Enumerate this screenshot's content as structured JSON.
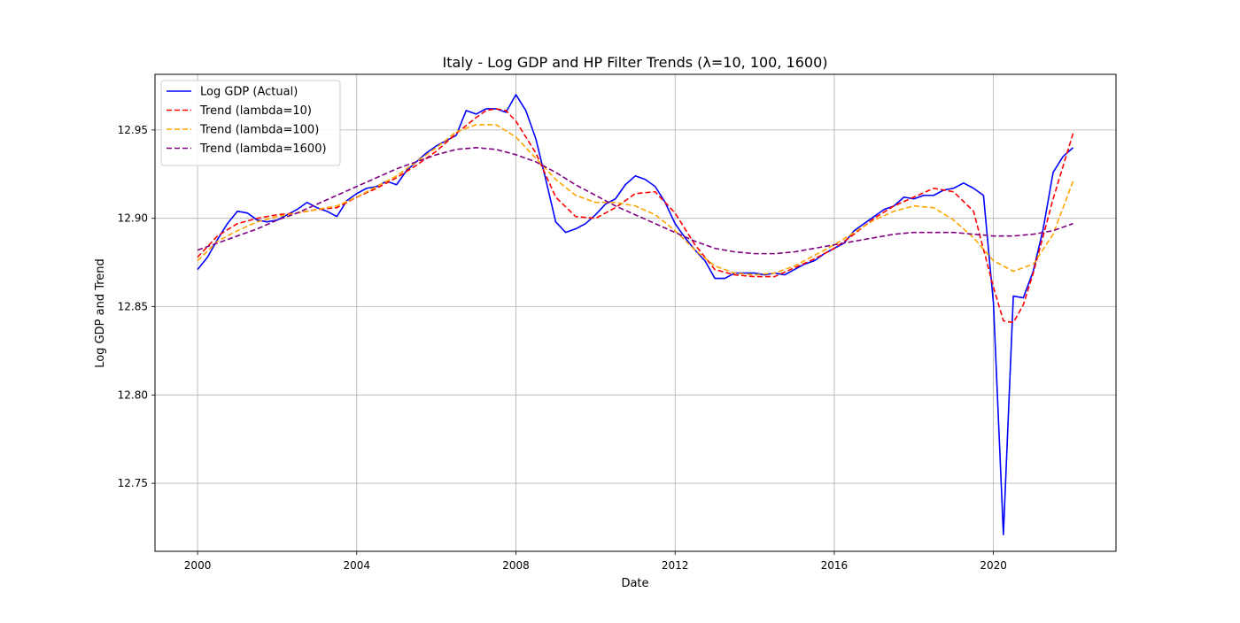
{
  "chart_data": {
    "type": "line",
    "title": "Italy - Log GDP and HP Filter Trends (λ=10, 100, 1600)",
    "xlabel": "Date",
    "ylabel": "Log GDP and Trend",
    "xlim": [
      1998.93,
      2023.08
    ],
    "ylim": [
      12.7115,
      12.9815
    ],
    "xticks": [
      2000,
      2004,
      2008,
      2012,
      2016,
      2020
    ],
    "xtick_labels": [
      "2000",
      "2004",
      "2008",
      "2012",
      "2016",
      "2020"
    ],
    "yticks": [
      12.75,
      12.8,
      12.85,
      12.9,
      12.95
    ],
    "ytick_labels": [
      "12.75",
      "12.80",
      "12.85",
      "12.90",
      "12.95"
    ],
    "grid": true,
    "legend_position": "top-left",
    "series": [
      {
        "name": "Log GDP (Actual)",
        "color": "#0000ff",
        "dash": "solid",
        "x": [
          2000.0,
          2000.25,
          2000.5,
          2000.75,
          2001.0,
          2001.25,
          2001.5,
          2001.75,
          2002.0,
          2002.25,
          2002.5,
          2002.75,
          2003.0,
          2003.25,
          2003.5,
          2003.75,
          2004.0,
          2004.25,
          2004.5,
          2004.75,
          2005.0,
          2005.25,
          2005.5,
          2005.75,
          2006.0,
          2006.25,
          2006.5,
          2006.75,
          2007.0,
          2007.25,
          2007.5,
          2007.75,
          2008.0,
          2008.25,
          2008.5,
          2008.75,
          2009.0,
          2009.25,
          2009.5,
          2009.75,
          2010.0,
          2010.25,
          2010.5,
          2010.75,
          2011.0,
          2011.25,
          2011.5,
          2011.75,
          2012.0,
          2012.25,
          2012.5,
          2012.75,
          2013.0,
          2013.25,
          2013.5,
          2013.75,
          2014.0,
          2014.25,
          2014.5,
          2014.75,
          2015.0,
          2015.25,
          2015.5,
          2015.75,
          2016.0,
          2016.25,
          2016.5,
          2016.75,
          2017.0,
          2017.25,
          2017.5,
          2017.75,
          2018.0,
          2018.25,
          2018.5,
          2018.75,
          2019.0,
          2019.25,
          2019.5,
          2019.75,
          2020.0,
          2020.25,
          2020.5,
          2020.75,
          2021.0,
          2021.25,
          2021.5,
          2021.75,
          2022.0
        ],
        "values": [
          12.871,
          12.878,
          12.888,
          12.897,
          12.904,
          12.903,
          12.899,
          12.898,
          12.899,
          12.902,
          12.905,
          12.909,
          12.906,
          12.904,
          12.901,
          12.91,
          12.914,
          12.917,
          12.918,
          12.921,
          12.919,
          12.927,
          12.932,
          12.937,
          12.941,
          12.944,
          12.947,
          12.961,
          12.959,
          12.962,
          12.962,
          12.96,
          12.97,
          12.961,
          12.945,
          12.922,
          12.898,
          12.892,
          12.894,
          12.897,
          12.902,
          12.908,
          12.911,
          12.919,
          12.924,
          12.922,
          12.918,
          12.909,
          12.897,
          12.889,
          12.882,
          12.876,
          12.866,
          12.866,
          12.869,
          12.869,
          12.869,
          12.868,
          12.869,
          12.868,
          12.871,
          12.874,
          12.876,
          12.88,
          12.883,
          12.886,
          12.893,
          12.897,
          12.901,
          12.905,
          12.907,
          12.912,
          12.911,
          12.913,
          12.913,
          12.916,
          12.917,
          12.92,
          12.917,
          12.913,
          12.852,
          12.721,
          12.856,
          12.855,
          12.87,
          12.894,
          12.926,
          12.935,
          12.94
        ]
      },
      {
        "name": "Trend (lambda=10)",
        "color": "#ff0000",
        "dash": "dashed",
        "x": [
          2000.0,
          2000.5,
          2001.0,
          2001.5,
          2002.0,
          2002.5,
          2003.0,
          2003.5,
          2004.0,
          2004.5,
          2005.0,
          2005.5,
          2006.0,
          2006.5,
          2007.0,
          2007.25,
          2007.5,
          2007.75,
          2008.0,
          2008.5,
          2009.0,
          2009.5,
          2010.0,
          2010.5,
          2011.0,
          2011.5,
          2012.0,
          2012.5,
          2013.0,
          2013.5,
          2014.0,
          2014.5,
          2015.0,
          2015.5,
          2016.0,
          2016.5,
          2017.0,
          2017.5,
          2018.0,
          2018.5,
          2019.0,
          2019.5,
          2020.0,
          2020.25,
          2020.5,
          2020.75,
          2021.0,
          2021.5,
          2022.0
        ],
        "values": [
          12.878,
          12.89,
          12.897,
          12.9,
          12.902,
          12.903,
          12.905,
          12.906,
          12.912,
          12.917,
          12.923,
          12.93,
          12.938,
          12.948,
          12.957,
          12.961,
          12.962,
          12.961,
          12.955,
          12.937,
          12.912,
          12.901,
          12.9,
          12.906,
          12.914,
          12.915,
          12.903,
          12.885,
          12.871,
          12.868,
          12.867,
          12.867,
          12.872,
          12.877,
          12.883,
          12.891,
          12.9,
          12.907,
          12.912,
          12.917,
          12.915,
          12.904,
          12.861,
          12.842,
          12.841,
          12.851,
          12.869,
          12.911,
          12.948
        ]
      },
      {
        "name": "Trend (lambda=100)",
        "color": "#ffa500",
        "dash": "dashed",
        "x": [
          2000.0,
          2000.5,
          2001.0,
          2001.5,
          2002.0,
          2002.5,
          2003.0,
          2003.5,
          2004.0,
          2004.5,
          2005.0,
          2005.5,
          2006.0,
          2006.5,
          2007.0,
          2007.5,
          2008.0,
          2008.5,
          2009.0,
          2009.5,
          2010.0,
          2010.5,
          2011.0,
          2011.5,
          2012.0,
          2012.5,
          2013.0,
          2013.5,
          2014.0,
          2014.5,
          2015.0,
          2015.5,
          2016.0,
          2016.5,
          2017.0,
          2017.5,
          2018.0,
          2018.5,
          2019.0,
          2019.5,
          2020.0,
          2020.5,
          2021.0,
          2021.5,
          2022.0
        ],
        "values": [
          12.876,
          12.887,
          12.893,
          12.898,
          12.901,
          12.903,
          12.905,
          12.907,
          12.912,
          12.918,
          12.924,
          12.932,
          12.94,
          12.949,
          12.953,
          12.953,
          12.946,
          12.934,
          12.922,
          12.913,
          12.909,
          12.909,
          12.907,
          12.902,
          12.893,
          12.882,
          12.873,
          12.869,
          12.868,
          12.869,
          12.873,
          12.879,
          12.885,
          12.892,
          12.899,
          12.904,
          12.907,
          12.906,
          12.899,
          12.889,
          12.876,
          12.87,
          12.874,
          12.891,
          12.921
        ]
      },
      {
        "name": "Trend (lambda=1600)",
        "color": "#800080",
        "dash": "dashed",
        "x": [
          2000.0,
          2000.5,
          2001.0,
          2001.5,
          2002.0,
          2002.5,
          2003.0,
          2003.5,
          2004.0,
          2004.5,
          2005.0,
          2005.5,
          2006.0,
          2006.5,
          2007.0,
          2007.5,
          2008.0,
          2008.5,
          2009.0,
          2009.5,
          2010.0,
          2010.5,
          2011.0,
          2011.5,
          2012.0,
          2012.5,
          2013.0,
          2013.5,
          2014.0,
          2014.5,
          2015.0,
          2015.5,
          2016.0,
          2016.5,
          2017.0,
          2017.5,
          2018.0,
          2018.5,
          2019.0,
          2019.5,
          2020.0,
          2020.5,
          2021.0,
          2021.5,
          2022.0
        ],
        "values": [
          12.882,
          12.886,
          12.89,
          12.894,
          12.899,
          12.903,
          12.908,
          12.913,
          12.918,
          12.923,
          12.928,
          12.932,
          12.936,
          12.939,
          12.94,
          12.939,
          12.936,
          12.932,
          12.926,
          12.919,
          12.913,
          12.907,
          12.902,
          12.897,
          12.892,
          12.887,
          12.883,
          12.881,
          12.88,
          12.88,
          12.881,
          12.883,
          12.885,
          12.887,
          12.889,
          12.891,
          12.892,
          12.892,
          12.892,
          12.891,
          12.89,
          12.89,
          12.891,
          12.893,
          12.897
        ]
      }
    ]
  }
}
